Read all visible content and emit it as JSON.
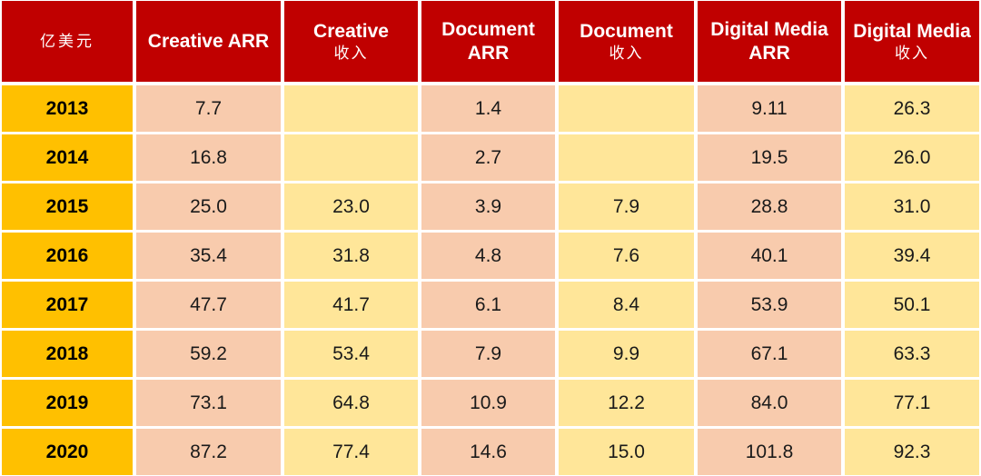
{
  "table": {
    "corner_label": "亿美元",
    "columns": [
      {
        "line1": "Creative ARR",
        "line2": ""
      },
      {
        "line1": "Creative",
        "line2": "收入"
      },
      {
        "line1": "Document",
        "line2": "ARR"
      },
      {
        "line1": "Document",
        "line2": "收入"
      },
      {
        "line1": "Digital Media",
        "line2": "ARR"
      },
      {
        "line1": "Digital Media",
        "line2": "收入"
      }
    ],
    "rows": [
      {
        "year": "2013",
        "values": [
          "7.7",
          "",
          "1.4",
          "",
          "9.11",
          "26.3"
        ]
      },
      {
        "year": "2014",
        "values": [
          "16.8",
          "",
          "2.7",
          "",
          "19.5",
          "26.0"
        ]
      },
      {
        "year": "2015",
        "values": [
          "25.0",
          "23.0",
          "3.9",
          "7.9",
          "28.8",
          "31.0"
        ]
      },
      {
        "year": "2016",
        "values": [
          "35.4",
          "31.8",
          "4.8",
          "7.6",
          "40.1",
          "39.4"
        ]
      },
      {
        "year": "2017",
        "values": [
          "47.7",
          "41.7",
          "6.1",
          "8.4",
          "53.9",
          "50.1"
        ]
      },
      {
        "year": "2018",
        "values": [
          "59.2",
          "53.4",
          "7.9",
          "9.9",
          "67.1",
          "63.3"
        ]
      },
      {
        "year": "2019",
        "values": [
          "73.1",
          "64.8",
          "10.9",
          "12.2",
          "84.0",
          "77.1"
        ]
      },
      {
        "year": "2020",
        "values": [
          "87.2",
          "77.4",
          "14.6",
          "15.0",
          "101.8",
          "92.3"
        ]
      }
    ],
    "colors": {
      "header_bg": "#c00000",
      "header_text": "#ffffff",
      "year_bg": "#ffc000",
      "cell_pink": "#f8cbad",
      "cell_yellow": "#ffe699"
    }
  }
}
